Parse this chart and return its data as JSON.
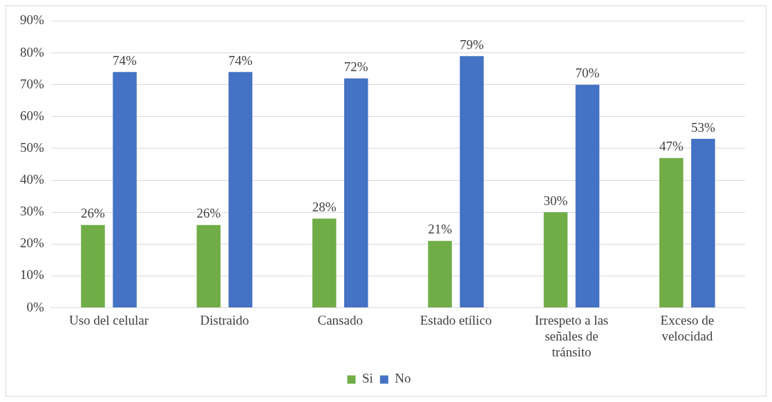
{
  "chart_data": {
    "type": "bar",
    "categories": [
      "Uso del celular",
      "Distraido",
      "Cansado",
      "Estado etílico",
      "Irrespeto a las señales de tránsito",
      "Exceso de velocidad"
    ],
    "series": [
      {
        "name": "Si",
        "color": "#70ad47",
        "values": [
          26,
          26,
          28,
          21,
          30,
          47
        ],
        "value_labels": [
          "26%",
          "26%",
          "28%",
          "21%",
          "30%",
          "47%"
        ]
      },
      {
        "name": "No",
        "color": "#4472c4",
        "values": [
          74,
          74,
          72,
          79,
          70,
          53
        ],
        "value_labels": [
          "74%",
          "74%",
          "72%",
          "79%",
          "70%",
          "53%"
        ]
      }
    ],
    "ylim": [
      0,
      90
    ],
    "yticks": [
      {
        "value": 0,
        "label": "0%"
      },
      {
        "value": 10,
        "label": "10%"
      },
      {
        "value": 20,
        "label": "20%"
      },
      {
        "value": 30,
        "label": "30%"
      },
      {
        "value": 40,
        "label": "40%"
      },
      {
        "value": 50,
        "label": "50%"
      },
      {
        "value": 60,
        "label": "60%"
      },
      {
        "value": 70,
        "label": "70%"
      },
      {
        "value": 80,
        "label": "80%"
      },
      {
        "value": 90,
        "label": "90%"
      }
    ],
    "grid": "y",
    "legend": "bottom"
  }
}
